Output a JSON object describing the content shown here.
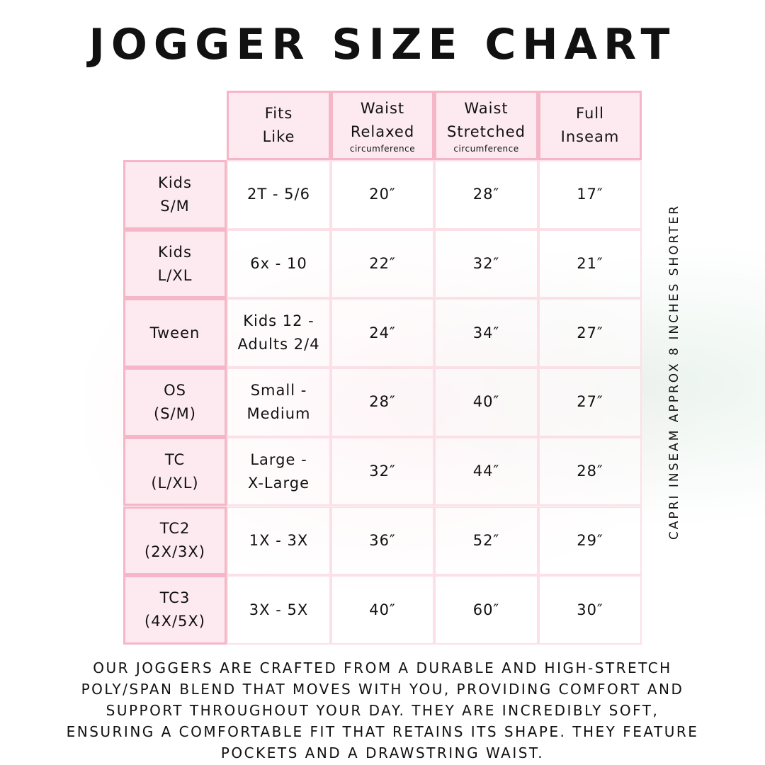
{
  "title": "JOGGER SIZE CHART",
  "columns": [
    {
      "line1": "Fits",
      "line2": "Like",
      "sub": ""
    },
    {
      "line1": "Waist",
      "line2": "Relaxed",
      "sub": "circumference"
    },
    {
      "line1": "Waist",
      "line2": "Stretched",
      "sub": "circumference"
    },
    {
      "line1": "Full",
      "line2": "Inseam",
      "sub": ""
    }
  ],
  "rows": [
    {
      "size1": "Kids",
      "size2": "S/M",
      "fits1": "2T - 5/6",
      "fits2": "",
      "relaxed": "20″",
      "stretched": "28″",
      "inseam": "17″"
    },
    {
      "size1": "Kids",
      "size2": "L/XL",
      "fits1": "6x - 10",
      "fits2": "",
      "relaxed": "22″",
      "stretched": "32″",
      "inseam": "21″"
    },
    {
      "size1": "Tween",
      "size2": "",
      "fits1": "Kids 12 -",
      "fits2": "Adults 2/4",
      "relaxed": "24″",
      "stretched": "34″",
      "inseam": "27″"
    },
    {
      "size1": "OS",
      "size2": "(S/M)",
      "fits1": "Small -",
      "fits2": "Medium",
      "relaxed": "28″",
      "stretched": "40″",
      "inseam": "27″"
    },
    {
      "size1": "TC",
      "size2": "(L/XL)",
      "fits1": "Large -",
      "fits2": "X-Large",
      "relaxed": "32″",
      "stretched": "44″",
      "inseam": "28″"
    },
    {
      "size1": "TC2",
      "size2": "(2X/3X)",
      "fits1": "1X - 3X",
      "fits2": "",
      "relaxed": "36″",
      "stretched": "52″",
      "inseam": "29″"
    },
    {
      "size1": "TC3",
      "size2": "(4X/5X)",
      "fits1": "3X - 5X",
      "fits2": "",
      "relaxed": "40″",
      "stretched": "60″",
      "inseam": "30″"
    }
  ],
  "side_note": "CAPRI INSEAM APPROX 8 INCHES SHORTER",
  "description": [
    "OUR JOGGERS ARE CRAFTED FROM A DURABLE AND HIGH-STRETCH",
    "POLY/SPAN BLEND THAT MOVES WITH YOU, PROVIDING COMFORT AND",
    "SUPPORT THROUGHOUT YOUR DAY. THEY ARE INCREDIBLY SOFT,",
    "ENSURING A COMFORTABLE FIT THAT RETAINS ITS SHAPE. THEY FEATURE",
    "POCKETS AND A DRAWSTRING WAIST."
  ],
  "colors": {
    "header_fill": "#fdeaf0",
    "border_pink": "#f5b6c8",
    "text": "#111111"
  }
}
